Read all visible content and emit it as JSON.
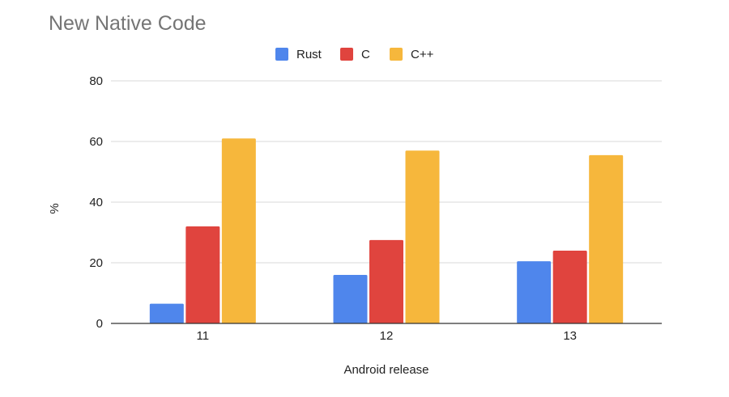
{
  "chart_data": {
    "type": "bar",
    "title": "New Native Code",
    "xlabel": "Android release",
    "ylabel": "%",
    "categories": [
      "11",
      "12",
      "13"
    ],
    "series": [
      {
        "name": "Rust",
        "color": "#4f86ec",
        "values": [
          6.5,
          16,
          20.5
        ]
      },
      {
        "name": "C",
        "color": "#e0443e",
        "values": [
          32,
          27.5,
          24
        ]
      },
      {
        "name": "C++",
        "color": "#f6b73c",
        "values": [
          61,
          57,
          55.5
        ]
      }
    ],
    "ylim": [
      0,
      80
    ],
    "yticks": [
      0,
      20,
      40,
      60,
      80
    ],
    "grid": true,
    "legend_position": "top-center"
  }
}
